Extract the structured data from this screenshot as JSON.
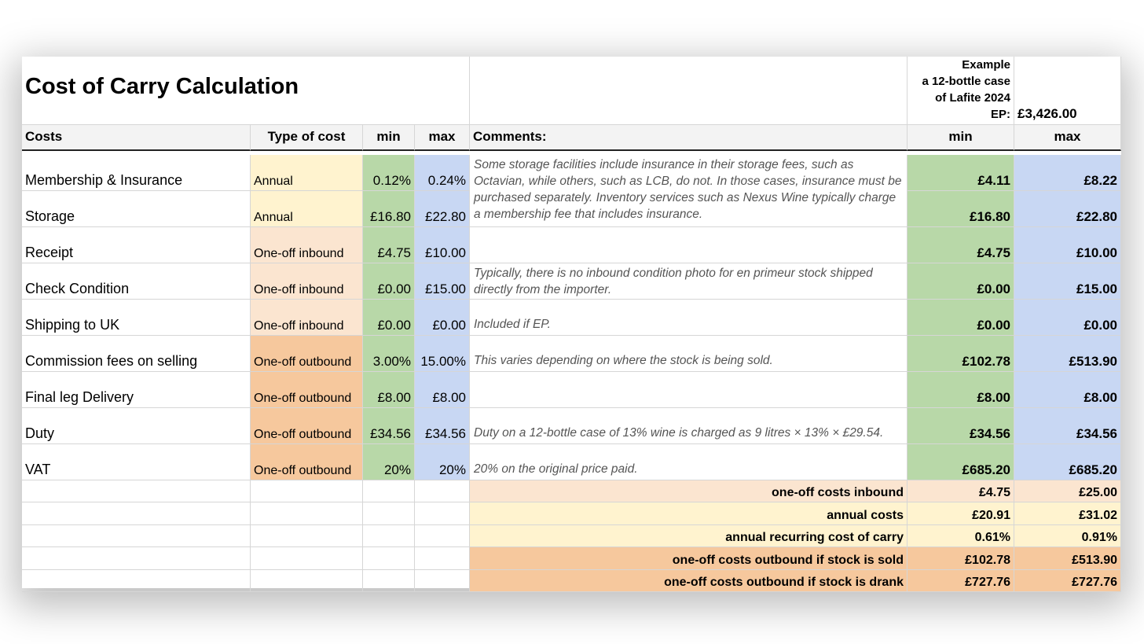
{
  "title": "Cost of Carry Calculation",
  "example": {
    "lines": [
      "Example",
      "a 12-bottle case",
      "of Lafite 2024",
      "EP:"
    ],
    "price": "£3,426.00"
  },
  "headers": {
    "costs": "Costs",
    "type": "Type of cost",
    "min": "min",
    "max": "max",
    "comments": "Comments:",
    "calc_min": "min",
    "calc_max": "max"
  },
  "colors": {
    "annual": "#fff3cf",
    "one_off_inbound": "#fbe5d0",
    "one_off_outbound": "#f6c89d",
    "min": "#b8d8a8",
    "max": "#c8d7f3"
  },
  "rows": [
    {
      "cost": "Membership & Insurance",
      "type": "Annual",
      "min": "0.12%",
      "max": "0.24%",
      "calc_min": "£4.11",
      "calc_max": "£8.22"
    },
    {
      "cost": "Storage",
      "type": "Annual",
      "min": "£16.80",
      "max": "£22.80",
      "calc_min": "£16.80",
      "calc_max": "£22.80"
    },
    {
      "cost": "Receipt",
      "type": "One-off inbound",
      "min": "£4.75",
      "max": "£10.00",
      "calc_min": "£4.75",
      "calc_max": "£10.00"
    },
    {
      "cost": "Check Condition",
      "type": "One-off inbound",
      "min": "£0.00",
      "max": "£15.00",
      "calc_min": "£0.00",
      "calc_max": "£15.00"
    },
    {
      "cost": "Shipping to UK",
      "type": "One-off inbound",
      "min": "£0.00",
      "max": "£0.00",
      "calc_min": "£0.00",
      "calc_max": "£0.00"
    },
    {
      "cost": "Commission fees on selling",
      "type": "One-off outbound",
      "min": "3.00%",
      "max": "15.00%",
      "calc_min": "£102.78",
      "calc_max": "£513.90"
    },
    {
      "cost": "Final leg Delivery",
      "type": "One-off outbound",
      "min": "£8.00",
      "max": "£8.00",
      "calc_min": "£8.00",
      "calc_max": "£8.00"
    },
    {
      "cost": "Duty",
      "type": "One-off outbound",
      "min": "£34.56",
      "max": "£34.56",
      "calc_min": "£34.56",
      "calc_max": "£34.56"
    },
    {
      "cost": "VAT",
      "type": "One-off outbound",
      "min": "20%",
      "max": "20%",
      "calc_min": "£685.20",
      "calc_max": "£685.20"
    }
  ],
  "comments": {
    "insurance_storage": "Some storage facilities include insurance in their storage fees, such as Octavian, while others, such as LCB, do not. In those cases, insurance must be purchased separately. Inventory services such as Nexus Wine typically charge a membership fee that includes insurance.",
    "check_condition": "Typically, there is no inbound condition photo for en primeur stock shipped directly from the importer.",
    "shipping": "Included if EP.",
    "commission": "This varies depending on where the stock is being sold.",
    "duty": "Duty on a 12-bottle case of 13% wine is charged as 9 litres × 13% × £29.54.",
    "vat": "20% on the original price paid."
  },
  "summary": [
    {
      "label": "one-off costs inbound",
      "min": "£4.75",
      "max": "£25.00",
      "kind": "inbound"
    },
    {
      "label": "annual costs",
      "min": "£20.91",
      "max": "£31.02",
      "kind": "annual"
    },
    {
      "label": "annual recurring cost of carry",
      "min": "0.61%",
      "max": "0.91%",
      "kind": "annual"
    },
    {
      "label": "one-off costs outbound if stock is sold",
      "min": "£102.78",
      "max": "£513.90",
      "kind": "outbound"
    },
    {
      "label": "one-off costs outbound if stock is drank",
      "min": "£727.76",
      "max": "£727.76",
      "kind": "outbound"
    }
  ]
}
